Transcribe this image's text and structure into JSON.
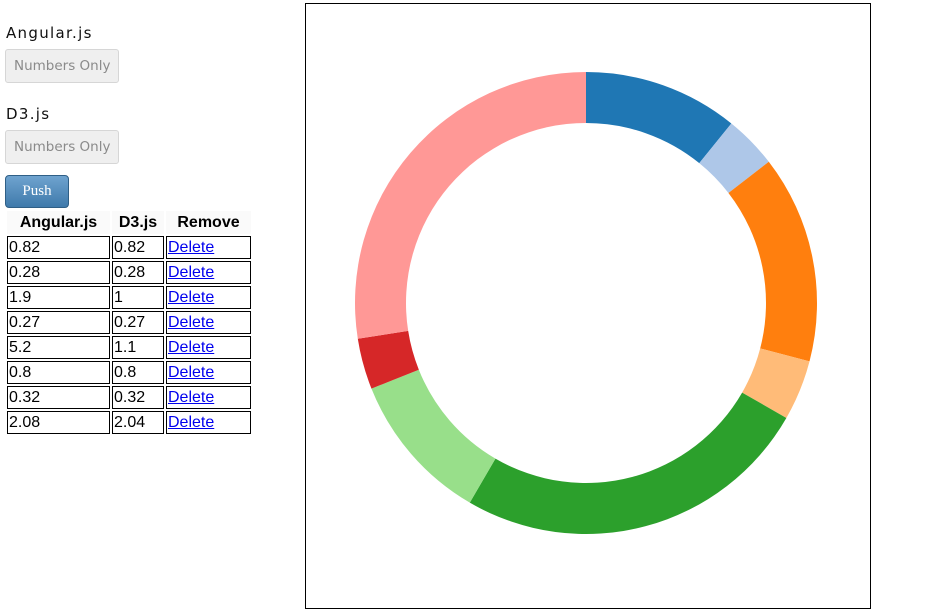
{
  "form": {
    "angular_label": "Angular.js",
    "angular_placeholder": "Numbers Only",
    "d3_label": "D3.js",
    "d3_placeholder": "Numbers Only",
    "push_label": "Push"
  },
  "table": {
    "headers": [
      "Angular.js",
      "D3.js",
      "Remove"
    ],
    "delete_label": "Delete",
    "rows": [
      {
        "angular": "0.82",
        "d3": "0.82"
      },
      {
        "angular": "0.28",
        "d3": "0.28"
      },
      {
        "angular": "1.9",
        "d3": "1"
      },
      {
        "angular": "0.27",
        "d3": "0.27"
      },
      {
        "angular": "5.2",
        "d3": "1.1"
      },
      {
        "angular": "0.8",
        "d3": "0.8"
      },
      {
        "angular": "0.32",
        "d3": "0.32"
      },
      {
        "angular": "2.08",
        "d3": "2.04"
      }
    ]
  },
  "chart_data": {
    "type": "pie",
    "style": "donut",
    "values": [
      0.82,
      0.28,
      1.1,
      0.32,
      1.9,
      0.8,
      0.27,
      2.08
    ],
    "colors": [
      "#1f77b4",
      "#aec7e8",
      "#ff7f0e",
      "#ffbb78",
      "#2ca02c",
      "#98df8a",
      "#d62728",
      "#ff9896"
    ],
    "legend": "none"
  }
}
